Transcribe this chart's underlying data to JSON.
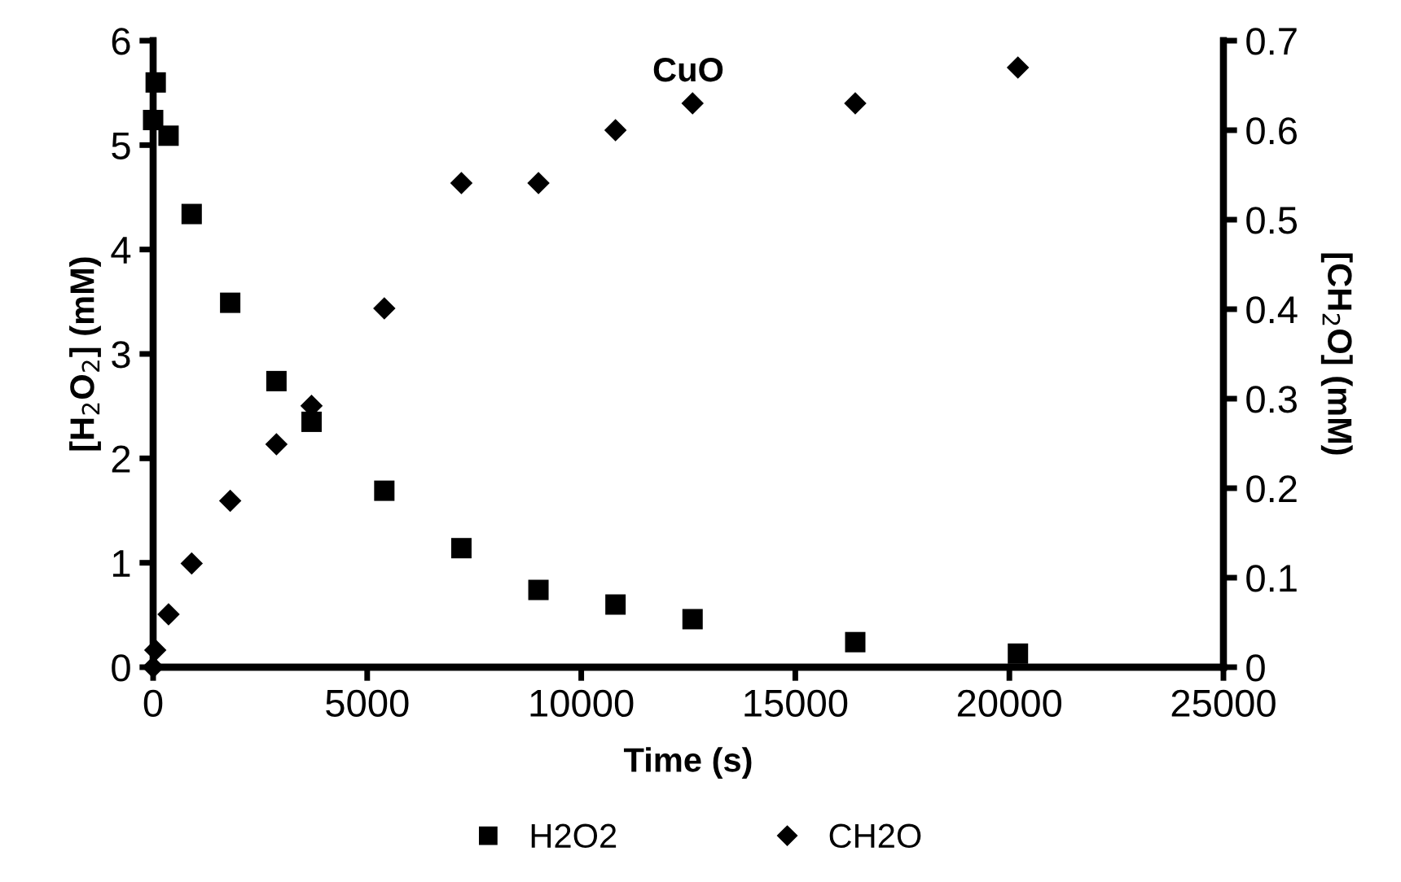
{
  "chart_data": {
    "type": "scatter",
    "title": "CuO",
    "xlabel": "Time (s)",
    "ylabel": "[H$_{2}$O$_{2}$] (mM)",
    "y2label": "[CH$_{2}$O] (mM)",
    "xlim": [
      0,
      25000
    ],
    "xticks": [
      0,
      5000,
      10000,
      15000,
      20000,
      25000
    ],
    "ylim": [
      0,
      6
    ],
    "yticks": [
      0,
      1,
      2,
      3,
      4,
      5,
      6
    ],
    "y2lim": [
      0,
      0.7
    ],
    "y2ticks": [
      0,
      0.1,
      0.2,
      0.3,
      0.4,
      0.5,
      0.6,
      0.7
    ],
    "grid": false,
    "legend": "bottom",
    "series": [
      {
        "name": "H2O2",
        "color": "#000000",
        "marker": "square",
        "x": [
          60,
          0,
          360,
          900,
          1800,
          2880,
          3700,
          5400,
          7200,
          9000,
          10800,
          12600,
          16400,
          20200
        ],
        "values": [
          5.6,
          5.24,
          5.09,
          4.34,
          3.49,
          2.74,
          2.35,
          1.69,
          1.14,
          0.74,
          0.6,
          0.46,
          0.24,
          0.13
        ]
      },
      {
        "name": "CH2O",
        "color": "#000000",
        "marker": "diamond",
        "axis": "y2",
        "x": [
          0,
          50,
          360,
          900,
          1800,
          2880,
          3700,
          5400,
          7200,
          9000,
          10800,
          12600,
          16400,
          20200
        ],
        "values": [
          0,
          0.019,
          0.059,
          0.116,
          0.186,
          0.249,
          0.292,
          0.401,
          0.541,
          0.541,
          0.6,
          0.63,
          0.63,
          0.67
        ]
      }
    ]
  }
}
